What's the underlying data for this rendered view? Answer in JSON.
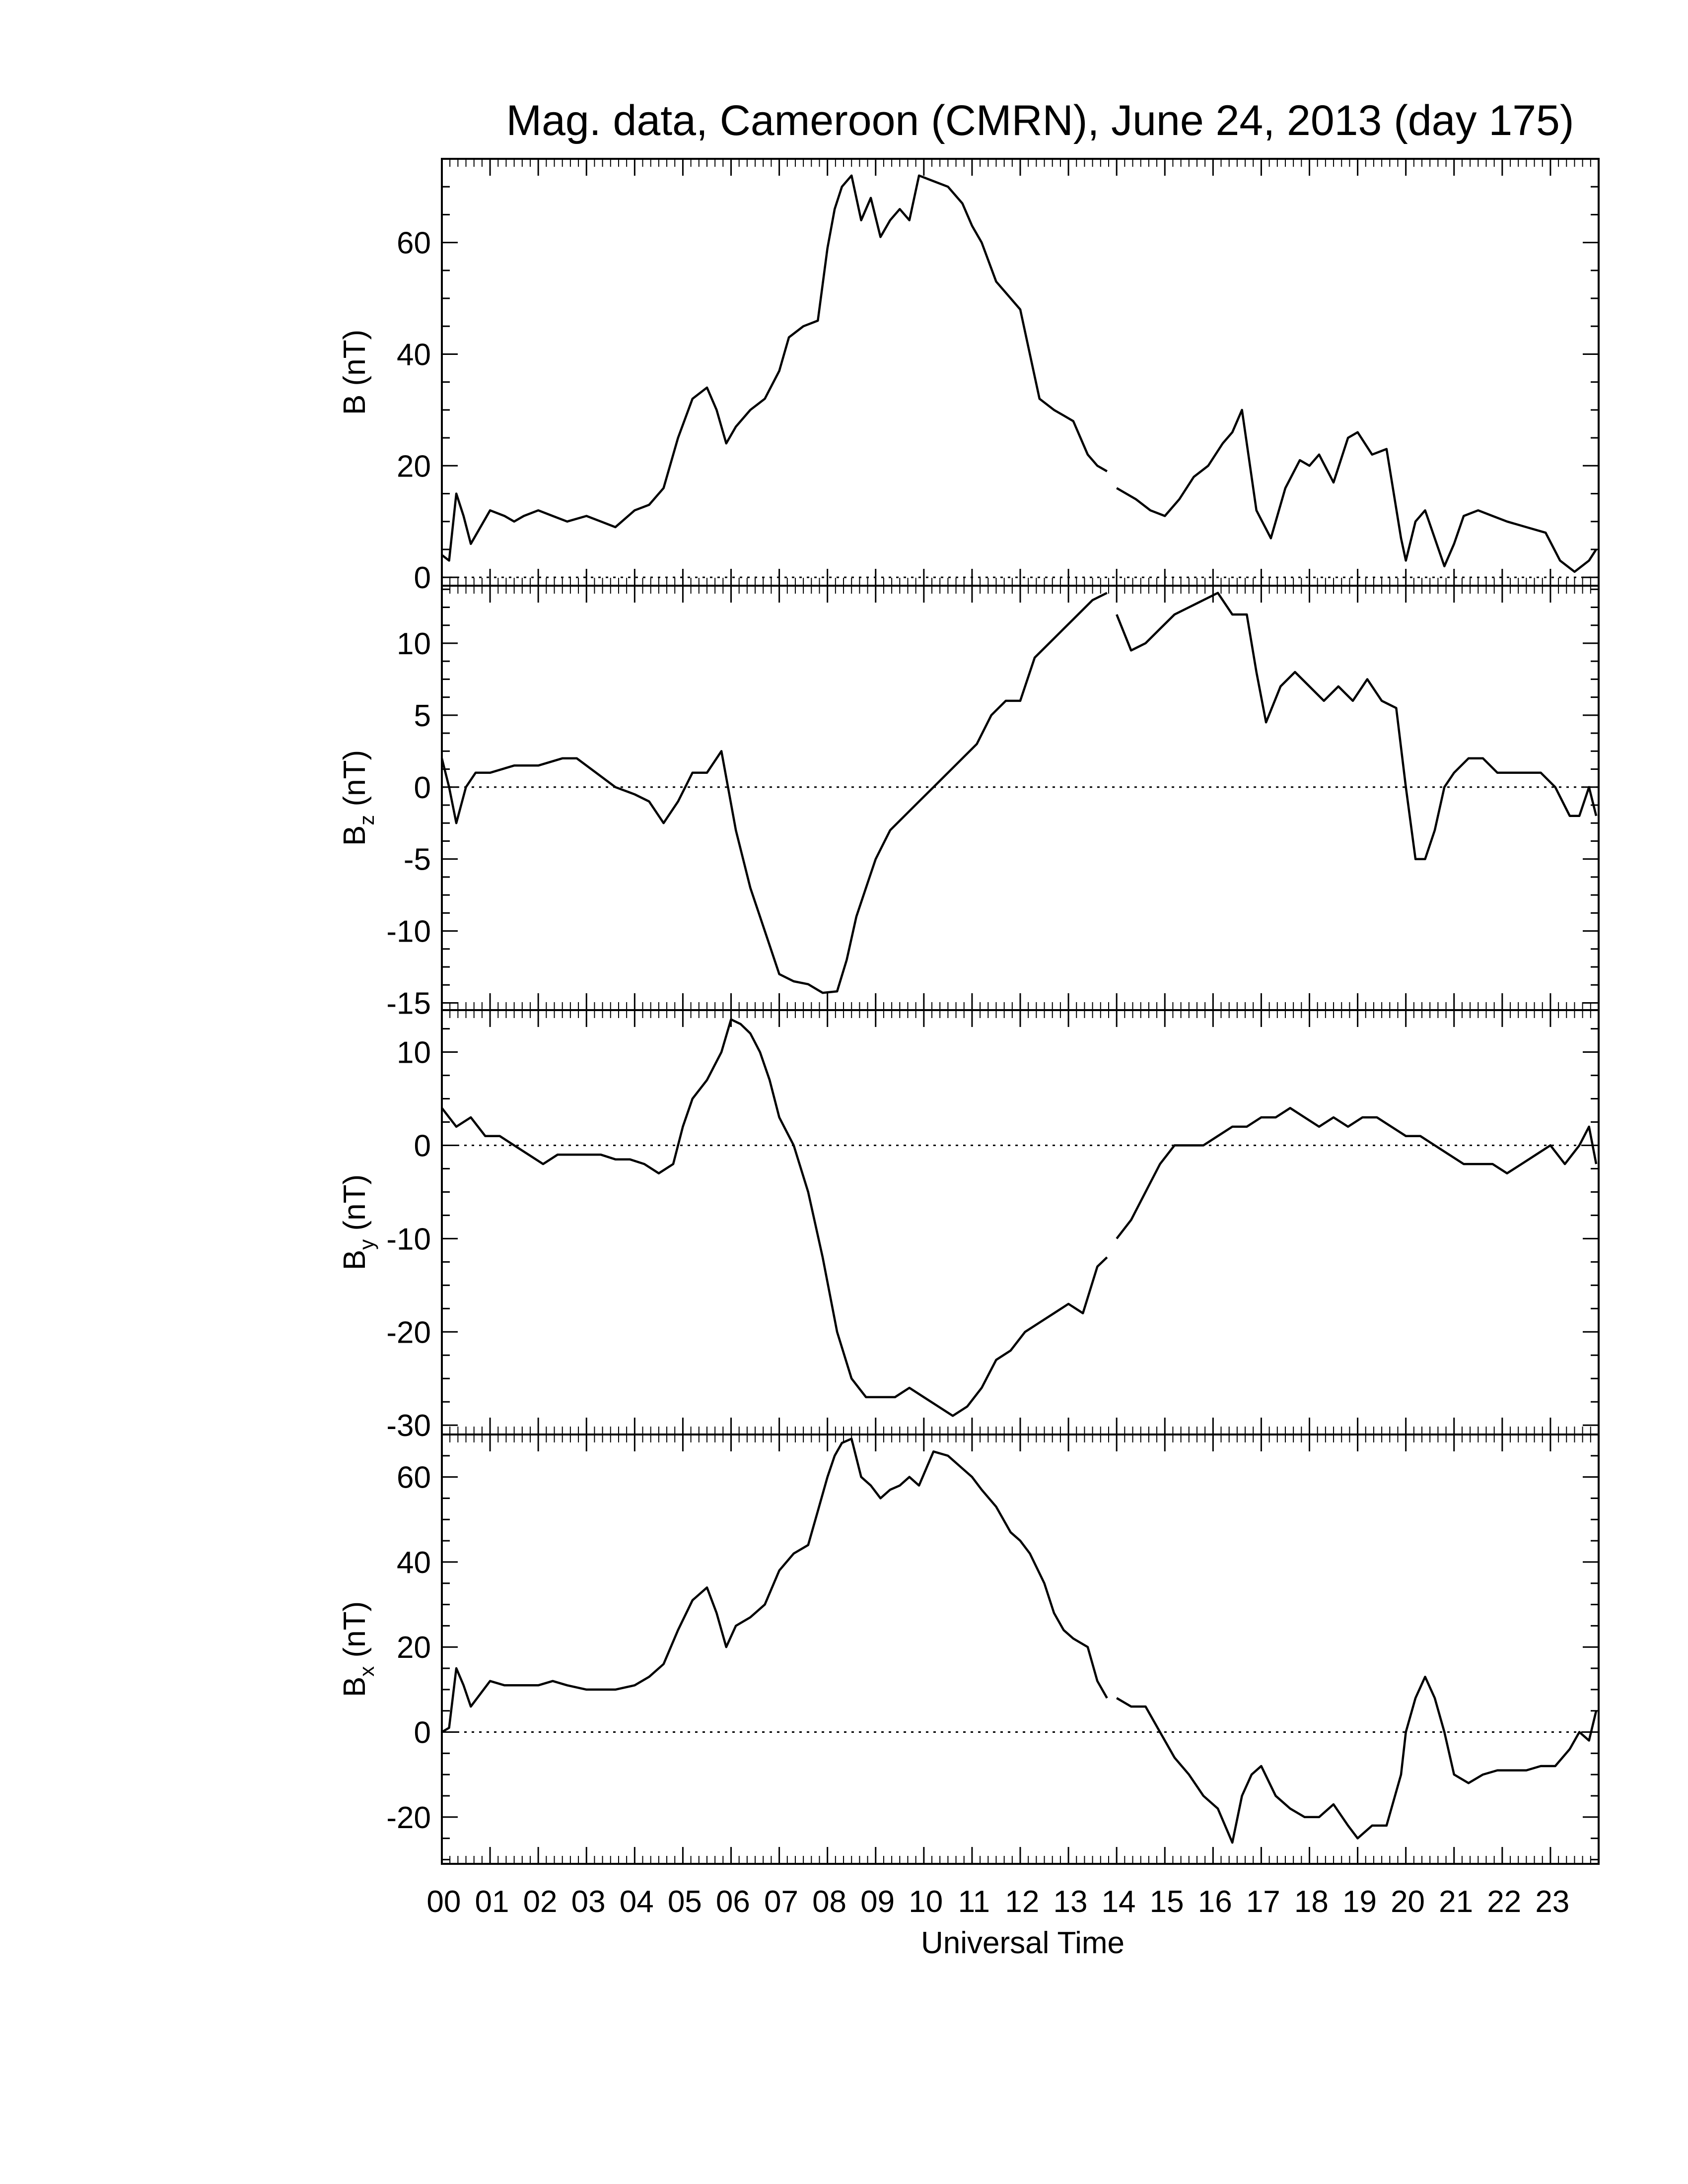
{
  "chart_data": {
    "type": "line",
    "title": "Mag. data, Cameroon (CMRN), June 24, 2013 (day 175)",
    "xlabel": "Universal Time",
    "x_tick_labels": [
      "00",
      "01",
      "02",
      "03",
      "04",
      "05",
      "06",
      "07",
      "08",
      "09",
      "10",
      "11",
      "12",
      "13",
      "14",
      "15",
      "16",
      "17",
      "18",
      "19",
      "20",
      "21",
      "22",
      "23"
    ],
    "xlim": [
      0,
      24
    ],
    "line_color": "#000000",
    "zero_line": "dotted",
    "panels": [
      {
        "id": "B",
        "ylabel_main": "B",
        "ylabel_sub": "",
        "ylabel_unit": "(nT)",
        "ylim": [
          -1.5,
          75
        ],
        "yticks": [
          0,
          20,
          40,
          60
        ],
        "series": {
          "segments": [
            {
              "t": [
                0,
                0.15,
                0.3,
                0.45,
                0.6,
                0.8,
                1,
                1.3,
                1.5,
                1.7,
                2,
                2.3,
                2.6,
                3,
                3.3,
                3.6,
                4,
                4.3,
                4.6,
                4.9,
                5.2,
                5.5,
                5.7,
                5.9,
                6.1,
                6.4,
                6.7,
                7,
                7.2,
                7.5,
                7.8,
                8,
                8.15,
                8.3,
                8.5,
                8.7,
                8.9,
                9.1,
                9.3,
                9.5,
                9.7,
                9.9,
                10.2,
                10.5,
                10.8,
                11,
                11.2,
                11.5,
                11.8,
                12,
                12.2,
                12.4,
                12.7,
                12.9,
                13.1,
                13.4,
                13.6,
                13.8
              ],
              "v": [
                4,
                3,
                15,
                11,
                6,
                9,
                12,
                11,
                10,
                11,
                12,
                11,
                10,
                11,
                10,
                9,
                12,
                13,
                16,
                25,
                32,
                34,
                30,
                24,
                27,
                30,
                32,
                37,
                43,
                45,
                46,
                59,
                66,
                70,
                72,
                64,
                68,
                61,
                64,
                66,
                64,
                72,
                71,
                70,
                67,
                63,
                60,
                53,
                50,
                48,
                40,
                32,
                30,
                29,
                28,
                22,
                20,
                19
              ]
            },
            {
              "t": [
                14,
                14.4,
                14.7,
                15,
                15.3,
                15.6,
                15.9,
                16.2,
                16.4,
                16.6,
                16.9,
                17.2,
                17.5,
                17.8,
                18,
                18.2,
                18.5,
                18.8,
                19,
                19.3,
                19.6,
                19.9,
                20,
                20.2,
                20.4,
                20.6,
                20.8,
                21,
                21.2,
                21.5,
                21.8,
                22.1,
                22.5,
                22.9,
                23.2,
                23.5,
                23.8,
                23.95
              ],
              "v": [
                16,
                14,
                12,
                11,
                14,
                18,
                20,
                24,
                26,
                30,
                12,
                7,
                16,
                21,
                20,
                22,
                17,
                25,
                26,
                22,
                23,
                7,
                3,
                10,
                12,
                7,
                2,
                6,
                11,
                12,
                11,
                10,
                9,
                8,
                3,
                1,
                3,
                5
              ]
            }
          ]
        }
      },
      {
        "id": "Bz",
        "ylabel_main": "B",
        "ylabel_sub": "z",
        "ylabel_unit": "(nT)",
        "ylim": [
          -15.5,
          14
        ],
        "yticks": [
          -15,
          -10,
          -5,
          0,
          5,
          10
        ],
        "yticklabels": [
          "-15",
          "-10",
          "-5",
          "0",
          "5",
          "10"
        ],
        "series": {
          "segments": [
            {
              "t": [
                0,
                0.15,
                0.3,
                0.5,
                0.7,
                1,
                1.5,
                2,
                2.5,
                2.8,
                3.2,
                3.6,
                4,
                4.3,
                4.6,
                4.9,
                5.2,
                5.5,
                5.8,
                6.1,
                6.4,
                6.7,
                7,
                7.3,
                7.6,
                7.9,
                8.2,
                8.4,
                8.6,
                8.8,
                9,
                9.3,
                9.6,
                9.9,
                10.2,
                10.5,
                10.8,
                11.1,
                11.4,
                11.7,
                12,
                12.3,
                12.6,
                12.9,
                13.2,
                13.5,
                13.8
              ],
              "v": [
                2,
                0,
                -2.5,
                0,
                1,
                1,
                1.5,
                1.5,
                2,
                2,
                1,
                0,
                -0.5,
                -1,
                -2.5,
                -1,
                1,
                1,
                2.5,
                -3,
                -7,
                -10,
                -13,
                -13.5,
                -13.7,
                -14.3,
                -14.2,
                -12,
                -9,
                -7,
                -5,
                -3,
                -2,
                -1,
                0,
                1,
                2,
                3,
                5,
                6,
                6,
                9,
                10,
                11,
                12,
                13,
                13.5
              ]
            },
            {
              "t": [
                14,
                14.3,
                14.6,
                14.9,
                15.2,
                15.5,
                15.8,
                16.1,
                16.4,
                16.7,
                16.9,
                17.1,
                17.4,
                17.7,
                18,
                18.3,
                18.6,
                18.9,
                19.2,
                19.5,
                19.8,
                20,
                20.2,
                20.4,
                20.6,
                20.8,
                21,
                21.3,
                21.6,
                21.9,
                22.2,
                22.5,
                22.8,
                23.1,
                23.4,
                23.6,
                23.8,
                23.95
              ],
              "v": [
                12,
                9.5,
                10,
                11,
                12,
                12.5,
                13,
                13.5,
                12,
                12,
                8,
                4.5,
                7,
                8,
                7,
                6,
                7,
                6,
                7.5,
                6,
                5.5,
                0,
                -5,
                -5,
                -3,
                0,
                1,
                2,
                2,
                1,
                1,
                1,
                1,
                0,
                -2,
                -2,
                0,
                -2
              ]
            }
          ]
        }
      },
      {
        "id": "By",
        "ylabel_main": "B",
        "ylabel_sub": "y",
        "ylabel_unit": "(nT)",
        "ylim": [
          -31,
          14.5
        ],
        "yticks": [
          -30,
          -20,
          -10,
          0,
          10
        ],
        "yticklabels": [
          "-30",
          "-20",
          "-10",
          "0",
          "10"
        ],
        "series": {
          "segments": [
            {
              "t": [
                0,
                0.3,
                0.6,
                0.9,
                1.2,
                1.5,
                1.8,
                2.1,
                2.4,
                2.7,
                3,
                3.3,
                3.6,
                3.9,
                4.2,
                4.5,
                4.8,
                5,
                5.2,
                5.5,
                5.8,
                6,
                6.2,
                6.4,
                6.6,
                6.8,
                7,
                7.3,
                7.6,
                7.9,
                8.2,
                8.5,
                8.8,
                9.1,
                9.4,
                9.7,
                10,
                10.3,
                10.6,
                10.9,
                11.2,
                11.5,
                11.8,
                12.1,
                12.4,
                12.7,
                13,
                13.3,
                13.6,
                13.8
              ],
              "v": [
                4,
                2,
                3,
                1,
                1,
                0,
                -1,
                -2,
                -1,
                -1,
                -1,
                -1,
                -1.5,
                -1.5,
                -2,
                -3,
                -2,
                2,
                5,
                7,
                10,
                13.5,
                13,
                12,
                10,
                7,
                3,
                0,
                -5,
                -12,
                -20,
                -25,
                -27,
                -27,
                -27,
                -26,
                -27,
                -28,
                -29,
                -28,
                -26,
                -23,
                -22,
                -20,
                -19,
                -18,
                -17,
                -18,
                -13,
                -12
              ]
            },
            {
              "t": [
                14,
                14.3,
                14.6,
                14.9,
                15.2,
                15.5,
                15.8,
                16.1,
                16.4,
                16.7,
                17,
                17.3,
                17.6,
                17.9,
                18.2,
                18.5,
                18.8,
                19.1,
                19.4,
                19.7,
                20,
                20.3,
                20.6,
                20.9,
                21.2,
                21.5,
                21.8,
                22.1,
                22.4,
                22.7,
                23,
                23.3,
                23.6,
                23.8,
                23.95
              ],
              "v": [
                -10,
                -8,
                -5,
                -2,
                0,
                0,
                0,
                1,
                2,
                2,
                3,
                3,
                4,
                3,
                2,
                3,
                2,
                3,
                3,
                2,
                1,
                1,
                0,
                -1,
                -2,
                -2,
                -2,
                -3,
                -2,
                -1,
                0,
                -2,
                0,
                2,
                -2
              ]
            }
          ]
        }
      },
      {
        "id": "Bx",
        "ylabel_main": "B",
        "ylabel_sub": "x",
        "ylabel_unit": "(nT)",
        "ylim": [
          -31,
          70
        ],
        "yticks": [
          -20,
          0,
          20,
          40,
          60
        ],
        "series": {
          "segments": [
            {
              "t": [
                0,
                0.15,
                0.3,
                0.45,
                0.6,
                0.8,
                1,
                1.3,
                1.6,
                2,
                2.3,
                2.6,
                3,
                3.3,
                3.6,
                4,
                4.3,
                4.6,
                4.9,
                5.2,
                5.5,
                5.7,
                5.9,
                6.1,
                6.4,
                6.7,
                7,
                7.3,
                7.6,
                7.8,
                8,
                8.15,
                8.3,
                8.5,
                8.7,
                8.9,
                9.1,
                9.3,
                9.5,
                9.7,
                9.9,
                10.2,
                10.5,
                10.8,
                11,
                11.2,
                11.5,
                11.8,
                12,
                12.2,
                12.5,
                12.7,
                12.9,
                13.1,
                13.4,
                13.6,
                13.8
              ],
              "v": [
                0,
                1,
                15,
                11,
                6,
                9,
                12,
                11,
                11,
                11,
                12,
                11,
                10,
                10,
                10,
                11,
                13,
                16,
                24,
                31,
                34,
                28,
                20,
                25,
                27,
                30,
                38,
                42,
                44,
                52,
                60,
                65,
                68,
                69,
                60,
                58,
                55,
                57,
                58,
                60,
                58,
                66,
                65,
                62,
                60,
                57,
                53,
                47,
                45,
                42,
                35,
                28,
                24,
                22,
                20,
                12,
                8
              ]
            },
            {
              "t": [
                14,
                14.3,
                14.6,
                14.9,
                15.2,
                15.5,
                15.8,
                16.1,
                16.4,
                16.6,
                16.8,
                17,
                17.3,
                17.6,
                17.9,
                18.2,
                18.5,
                18.8,
                19,
                19.3,
                19.6,
                19.9,
                20,
                20.2,
                20.4,
                20.6,
                20.8,
                21,
                21.3,
                21.6,
                21.9,
                22.2,
                22.5,
                22.8,
                23.1,
                23.4,
                23.6,
                23.8,
                23.95
              ],
              "v": [
                8,
                6,
                6,
                0,
                -6,
                -10,
                -15,
                -18,
                -26,
                -15,
                -10,
                -8,
                -15,
                -18,
                -20,
                -20,
                -17,
                -22,
                -25,
                -22,
                -22,
                -10,
                0,
                8,
                13,
                8,
                0,
                -10,
                -12,
                -10,
                -9,
                -9,
                -9,
                -8,
                -8,
                -4,
                0,
                -2,
                5
              ]
            }
          ]
        }
      }
    ]
  }
}
